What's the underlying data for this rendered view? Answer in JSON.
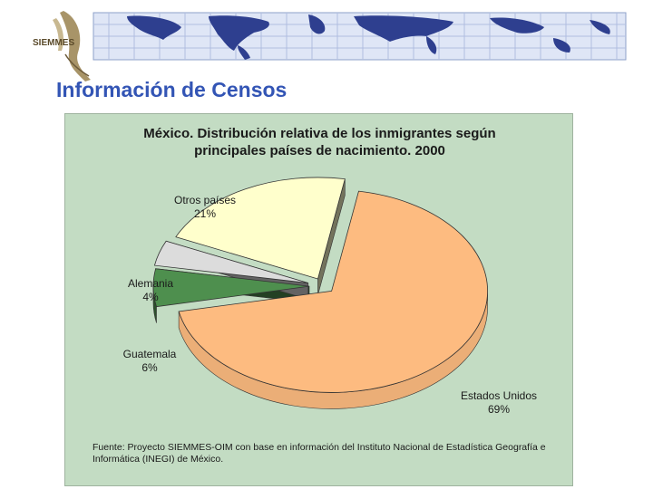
{
  "logo": {
    "text": "SIEMMES"
  },
  "header": {
    "title": "Información de Censos"
  },
  "chart_data": {
    "type": "pie",
    "title_lines": [
      "México. Distribución relativa de los inmigrantes según",
      "principales países de nacimiento. 2000"
    ],
    "slices": [
      {
        "label": "Estados Unidos",
        "value": 69,
        "display": "69%",
        "color": "#fdbb80"
      },
      {
        "label": "Guatemala",
        "value": 6,
        "display": "6%",
        "color": "#4e8f4e"
      },
      {
        "label": "Alemania",
        "value": 4,
        "display": "4%",
        "color": "#dcdcdc"
      },
      {
        "label": "Otros países",
        "value": 21,
        "display": "21%",
        "color": "#ffffcc"
      }
    ],
    "source_note": "Fuente: Proyecto SIEMMES-OIM con base en información del Instituto Nacional de Estadística Geografía e Informática (INEGI) de México."
  }
}
